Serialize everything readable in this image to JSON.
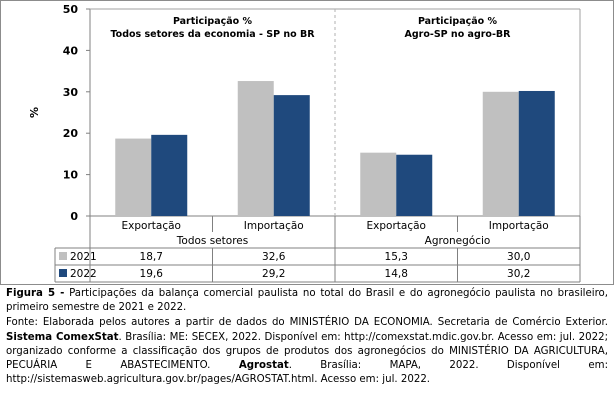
{
  "chart_data": {
    "type": "bar",
    "ylabel": "%",
    "ylim": [
      0,
      50
    ],
    "yticks": [
      0,
      10,
      20,
      30,
      40,
      50
    ],
    "grid": false,
    "categories": [
      "Exportação",
      "Importação",
      "Exportação",
      "Importação"
    ],
    "groups": [
      {
        "label": "Todos setores",
        "title_line1": "Participação %",
        "title_line2": "Todos setores da economia - SP no BR"
      },
      {
        "label": "Agronegócio",
        "title_line1": "Participação %",
        "title_line2": "Agro-SP no agro-BR"
      }
    ],
    "series": [
      {
        "name": "2021",
        "color": "#c0c0c0",
        "values": [
          18.7,
          32.6,
          15.3,
          30.0
        ],
        "labels": [
          "18,7",
          "32,6",
          "15,3",
          "30,0"
        ]
      },
      {
        "name": "2022",
        "color": "#1f497d",
        "values": [
          19.6,
          29.2,
          14.8,
          30.2
        ],
        "labels": [
          "19,6",
          "29,2",
          "14,8",
          "30,2"
        ]
      }
    ]
  },
  "caption": {
    "figure_label": "Figura 5 -",
    "figure_text": "Participações da balança comercial paulista no total do Brasil e do agronegócio paulista no brasileiro, primeiro semestre de 2021 e 2022.",
    "source_1": "Fonte: Elaborada pelos autores a partir de dados do MINISTÉRIO DA ECONOMIA. Secretaria de Comércio Exterior.",
    "source_bold_1": "Sistema ComexStat",
    "source_2": ". Brasília: ME: SECEX, 2022. Disponível em: http://comexstat.mdic.gov.br. Acesso em: jul. 2022; organizado conforme a classificação dos grupos de produtos dos agronegócios do MINISTÉRIO DA AGRICULTURA, PECUÁRIA E ABASTECIMENTO.",
    "source_bold_2": "Agrostat",
    "source_3": ". Brasília: MAPA, 2022. Disponível em: http://sistemasweb.agricultura.gov.br/pages/AGROSTAT.html. Acesso em: jul. 2022."
  }
}
